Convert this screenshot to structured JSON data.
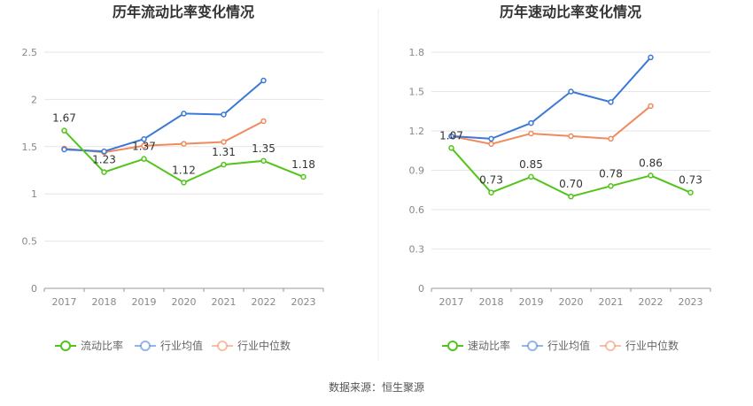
{
  "source_text": "数据来源：恒生聚源",
  "chart_data": [
    {
      "type": "line",
      "title": "历年流动比率变化情况",
      "categories": [
        "2017",
        "2018",
        "2019",
        "2020",
        "2021",
        "2022",
        "2023"
      ],
      "ylim": [
        0,
        2.5
      ],
      "yticks": [
        "0",
        "0.5",
        "1",
        "1.5",
        "2",
        "2.5"
      ],
      "grid": true,
      "legend_position": "bottom",
      "series": [
        {
          "name": "流动比率",
          "color": "#52c41a",
          "values": [
            1.67,
            1.23,
            1.37,
            1.12,
            1.31,
            1.35,
            1.18
          ],
          "labels": [
            "1.67",
            "1.23",
            "1.37",
            "1.12",
            "1.31",
            "1.35",
            "1.18"
          ]
        },
        {
          "name": "行业均值",
          "color": "#3c78d8",
          "values": [
            1.47,
            1.45,
            1.58,
            1.85,
            1.84,
            2.2,
            null
          ]
        },
        {
          "name": "行业中位数",
          "color": "#f08a5d",
          "values": [
            1.48,
            1.44,
            1.51,
            1.53,
            1.55,
            1.77,
            null
          ]
        }
      ]
    },
    {
      "type": "line",
      "title": "历年速动比率变化情况",
      "categories": [
        "2017",
        "2018",
        "2019",
        "2020",
        "2021",
        "2022",
        "2023"
      ],
      "ylim": [
        0,
        1.8
      ],
      "yticks": [
        "0",
        "0.3",
        "0.6",
        "0.9",
        "1.2",
        "1.5",
        "1.8"
      ],
      "grid": true,
      "legend_position": "bottom",
      "series": [
        {
          "name": "速动比率",
          "color": "#52c41a",
          "values": [
            1.07,
            0.73,
            0.85,
            0.7,
            0.78,
            0.86,
            0.73
          ],
          "labels": [
            "1.07",
            "0.73",
            "0.85",
            "0.70",
            "0.78",
            "0.86",
            "0.73"
          ]
        },
        {
          "name": "行业均值",
          "color": "#3c78d8",
          "values": [
            1.16,
            1.14,
            1.26,
            1.5,
            1.42,
            1.76,
            null
          ]
        },
        {
          "name": "行业中位数",
          "color": "#f08a5d",
          "values": [
            1.16,
            1.1,
            1.18,
            1.16,
            1.14,
            1.39,
            null
          ]
        }
      ]
    }
  ]
}
